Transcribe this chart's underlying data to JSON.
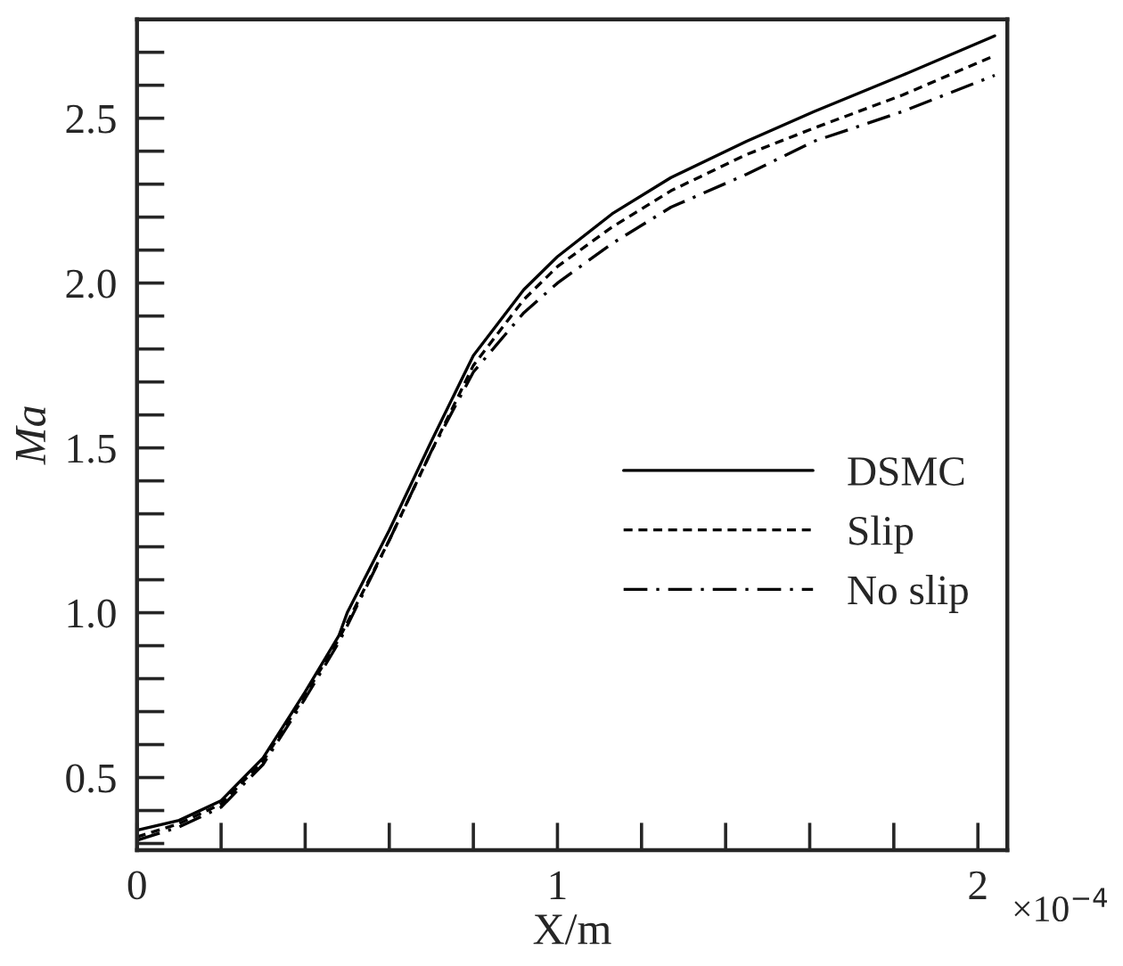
{
  "chart_data": {
    "type": "line",
    "xlabel": "X/m",
    "ylabel": "Ma",
    "annotations": [
      "×10$^{−4}$"
    ],
    "x": [
      0,
      0.1,
      0.2,
      0.3,
      0.4,
      0.48,
      0.5,
      0.6,
      0.7,
      0.8,
      0.92,
      1.0,
      1.13,
      1.27,
      1.45,
      1.61,
      1.82,
      2.04
    ],
    "series": [
      {
        "name": "DSMC",
        "color": "#000000",
        "line_style": "solid",
        "values": [
          0.34,
          0.37,
          0.43,
          0.56,
          0.76,
          0.93,
          1.0,
          1.25,
          1.52,
          1.78,
          1.98,
          2.08,
          2.21,
          2.32,
          2.43,
          2.52,
          2.63,
          2.75
        ]
      },
      {
        "name": "Slip",
        "color": "#000000",
        "line_style": "dashed",
        "values": [
          0.32,
          0.36,
          0.42,
          0.55,
          0.75,
          0.92,
          0.97,
          1.22,
          1.49,
          1.75,
          1.95,
          2.05,
          2.17,
          2.28,
          2.39,
          2.47,
          2.57,
          2.69
        ]
      },
      {
        "name": "No slip",
        "color": "#000000",
        "line_style": "dashdot",
        "values": [
          0.31,
          0.35,
          0.41,
          0.54,
          0.74,
          0.91,
          0.96,
          1.22,
          1.49,
          1.73,
          1.91,
          2.0,
          2.12,
          2.23,
          2.33,
          2.43,
          2.52,
          2.63
        ]
      }
    ],
    "xlim": [
      0,
      2.07
    ],
    "ylim": [
      0.28,
      2.8
    ],
    "xticks": [
      0,
      {
        "value": 0.2,
        "label": null
      },
      {
        "value": 0.4,
        "label": null
      },
      {
        "value": 0.6,
        "label": null
      },
      {
        "value": 0.8,
        "label": null
      },
      1,
      {
        "value": 1.2,
        "label": null
      },
      {
        "value": 1.4,
        "label": null
      },
      {
        "value": 1.6,
        "label": null
      },
      {
        "value": 1.8,
        "label": null
      },
      2
    ],
    "yticks": [
      {
        "value": 0.3,
        "label": null
      },
      {
        "value": 0.4,
        "label": null
      },
      {
        "value": 0.5,
        "label": "0.5"
      },
      {
        "value": 0.6,
        "label": null
      },
      {
        "value": 0.7,
        "label": null
      },
      {
        "value": 0.8,
        "label": null
      },
      {
        "value": 0.9,
        "label": null
      },
      {
        "value": 1.0,
        "label": "1.0"
      },
      {
        "value": 1.1,
        "label": null
      },
      {
        "value": 1.2,
        "label": null
      },
      {
        "value": 1.3,
        "label": null
      },
      {
        "value": 1.4,
        "label": null
      },
      {
        "value": 1.5,
        "label": "1.5"
      },
      {
        "value": 1.6,
        "label": null
      },
      {
        "value": 1.7,
        "label": null
      },
      {
        "value": 1.8,
        "label": null
      },
      {
        "value": 1.9,
        "label": null
      },
      {
        "value": 2.0,
        "label": "2.0"
      },
      {
        "value": 2.1,
        "label": null
      },
      {
        "value": 2.2,
        "label": null
      },
      {
        "value": 2.3,
        "label": null
      },
      {
        "value": 2.4,
        "label": null
      },
      {
        "value": 2.5,
        "label": "2.5"
      },
      {
        "value": 2.6,
        "label": null
      },
      {
        "value": 2.7,
        "label": null
      }
    ],
    "grid": false,
    "legend": "right",
    "marker": "none"
  }
}
